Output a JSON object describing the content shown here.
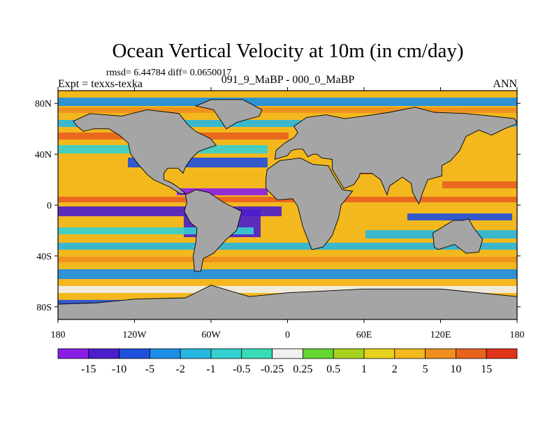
{
  "chart_data": {
    "type": "heatmap",
    "title": "Ocean Vertical Velocity at 10m (in cm/day)",
    "stats_label": "rmsd= 6.44784 diff= 0.0650017",
    "experiment_label": "Expt = texxs-texka",
    "comparison_label": "091_9_MaBP - 000_0_MaBP",
    "period_label": "ANN",
    "projection": "cylindrical equidistant, longitude -180 to 180, latitude -90 to 90",
    "x_range": [
      -180,
      180
    ],
    "y_range": [
      -90,
      90
    ],
    "x_ticks": [
      {
        "value": -180,
        "label": "180"
      },
      {
        "value": -120,
        "label": "120W"
      },
      {
        "value": -60,
        "label": "60W"
      },
      {
        "value": 0,
        "label": "0"
      },
      {
        "value": 60,
        "label": "60E"
      },
      {
        "value": 120,
        "label": "120E"
      },
      {
        "value": 180,
        "label": "180"
      }
    ],
    "y_ticks": [
      {
        "value": 80,
        "label": "80N"
      },
      {
        "value": 40,
        "label": "40N"
      },
      {
        "value": 0,
        "label": "0"
      },
      {
        "value": -40,
        "label": "40S"
      },
      {
        "value": -80,
        "label": "80S"
      }
    ],
    "colorbar": {
      "labels": [
        "-15",
        "-10",
        "-5",
        "-2",
        "-1",
        "-0.5",
        "-0.25",
        "0.25",
        "0.5",
        "1",
        "2",
        "5",
        "10",
        "15"
      ],
      "colors": [
        "#8a1ee6",
        "#4a1ecc",
        "#1f4fdd",
        "#1a8ee6",
        "#27b7e0",
        "#34d0d0",
        "#38dcb6",
        "#f0f0f0",
        "#66d631",
        "#a8d11e",
        "#e6d21e",
        "#f2b81e",
        "#ef8f1e",
        "#e8621e",
        "#e1331a"
      ]
    },
    "land_color": "#a5a5a5",
    "land_regions": [
      {
        "name": "North America",
        "lon_lat": [
          [
            -168,
            66
          ],
          [
            -155,
            72
          ],
          [
            -130,
            70
          ],
          [
            -110,
            75
          ],
          [
            -85,
            72
          ],
          [
            -78,
            63
          ],
          [
            -72,
            58
          ],
          [
            -60,
            52
          ],
          [
            -56,
            47
          ],
          [
            -65,
            44
          ],
          [
            -70,
            42
          ],
          [
            -76,
            36
          ],
          [
            -80,
            30
          ],
          [
            -82,
            25
          ],
          [
            -86,
            29
          ],
          [
            -94,
            29
          ],
          [
            -97,
            25
          ],
          [
            -97,
            20
          ],
          [
            -92,
            18
          ],
          [
            -87,
            15
          ],
          [
            -80,
            9
          ],
          [
            -84,
            9
          ],
          [
            -92,
            14
          ],
          [
            -105,
            20
          ],
          [
            -110,
            24
          ],
          [
            -117,
            32
          ],
          [
            -123,
            40
          ],
          [
            -125,
            49
          ],
          [
            -132,
            55
          ],
          [
            -140,
            60
          ],
          [
            -152,
            60
          ],
          [
            -160,
            58
          ],
          [
            -165,
            62
          ]
        ]
      },
      {
        "name": "Greenland",
        "lon_lat": [
          [
            -72,
            78
          ],
          [
            -60,
            83
          ],
          [
            -35,
            83
          ],
          [
            -20,
            75
          ],
          [
            -22,
            70
          ],
          [
            -40,
            65
          ],
          [
            -48,
            60
          ],
          [
            -52,
            66
          ],
          [
            -58,
            75
          ]
        ]
      },
      {
        "name": "South America",
        "lon_lat": [
          [
            -80,
            8
          ],
          [
            -72,
            12
          ],
          [
            -62,
            10
          ],
          [
            -50,
            2
          ],
          [
            -36,
            -5
          ],
          [
            -40,
            -20
          ],
          [
            -48,
            -27
          ],
          [
            -58,
            -38
          ],
          [
            -66,
            -42
          ],
          [
            -68,
            -52
          ],
          [
            -73,
            -52
          ],
          [
            -74,
            -40
          ],
          [
            -72,
            -30
          ],
          [
            -71,
            -18
          ],
          [
            -76,
            -14
          ],
          [
            -81,
            -5
          ],
          [
            -79,
            2
          ]
        ]
      },
      {
        "name": "Africa",
        "lon_lat": [
          [
            -17,
            20
          ],
          [
            -16,
            28
          ],
          [
            -6,
            35
          ],
          [
            10,
            37
          ],
          [
            20,
            32
          ],
          [
            32,
            31
          ],
          [
            35,
            25
          ],
          [
            43,
            12
          ],
          [
            51,
            11
          ],
          [
            42,
            0
          ],
          [
            40,
            -10
          ],
          [
            35,
            -24
          ],
          [
            28,
            -33
          ],
          [
            19,
            -35
          ],
          [
            12,
            -17
          ],
          [
            8,
            -1
          ],
          [
            4,
            5
          ],
          [
            -8,
            4
          ],
          [
            -17,
            13
          ]
        ]
      },
      {
        "name": "Eurasia",
        "lon_lat": [
          [
            -10,
            36
          ],
          [
            -9,
            43
          ],
          [
            -2,
            49
          ],
          [
            5,
            53
          ],
          [
            8,
            57
          ],
          [
            5,
            62
          ],
          [
            15,
            69
          ],
          [
            30,
            71
          ],
          [
            45,
            68
          ],
          [
            60,
            70
          ],
          [
            80,
            73
          ],
          [
            100,
            77
          ],
          [
            115,
            73
          ],
          [
            140,
            72
          ],
          [
            160,
            70
          ],
          [
            178,
            68
          ],
          [
            180,
            64
          ],
          [
            170,
            60
          ],
          [
            160,
            55
          ],
          [
            150,
            59
          ],
          [
            140,
            54
          ],
          [
            135,
            43
          ],
          [
            128,
            35
          ],
          [
            121,
            31
          ],
          [
            121,
            23
          ],
          [
            110,
            20
          ],
          [
            106,
            10
          ],
          [
            103,
            1
          ],
          [
            98,
            10
          ],
          [
            97,
            17
          ],
          [
            90,
            22
          ],
          [
            80,
            15
          ],
          [
            78,
            8
          ],
          [
            73,
            20
          ],
          [
            66,
            25
          ],
          [
            57,
            25
          ],
          [
            56,
            22
          ],
          [
            52,
            16
          ],
          [
            44,
            13
          ],
          [
            40,
            20
          ],
          [
            35,
            28
          ],
          [
            35,
            36
          ],
          [
            27,
            37
          ],
          [
            23,
            40
          ],
          [
            20,
            40
          ],
          [
            16,
            38
          ],
          [
            12,
            44
          ],
          [
            8,
            44
          ],
          [
            3,
            43
          ],
          [
            0,
            39
          ]
        ]
      },
      {
        "name": "Australia",
        "lon_lat": [
          [
            114,
            -22
          ],
          [
            122,
            -17
          ],
          [
            130,
            -12
          ],
          [
            137,
            -12
          ],
          [
            142,
            -11
          ],
          [
            146,
            -18
          ],
          [
            153,
            -27
          ],
          [
            150,
            -37
          ],
          [
            140,
            -38
          ],
          [
            131,
            -31
          ],
          [
            118,
            -35
          ],
          [
            115,
            -33
          ]
        ]
      },
      {
        "name": "Antarctica",
        "lon_lat": [
          [
            -180,
            -90
          ],
          [
            180,
            -90
          ],
          [
            180,
            -72
          ],
          [
            120,
            -66
          ],
          [
            60,
            -66
          ],
          [
            0,
            -69
          ],
          [
            -30,
            -72
          ],
          [
            -60,
            -63
          ],
          [
            -80,
            -73
          ],
          [
            -120,
            -74
          ],
          [
            -150,
            -77
          ],
          [
            -180,
            -78
          ]
        ]
      }
    ]
  }
}
